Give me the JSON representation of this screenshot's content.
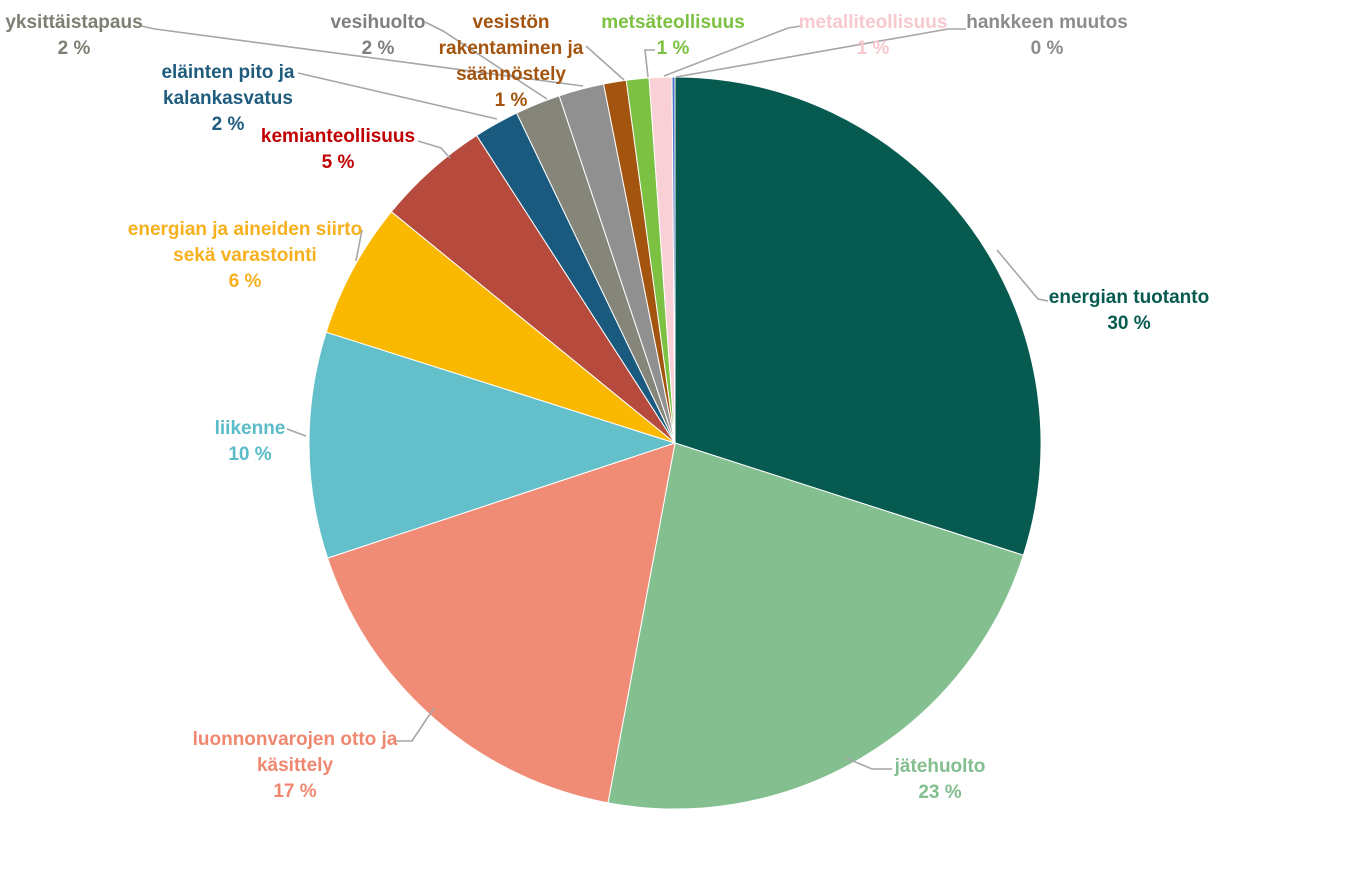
{
  "chart_data": {
    "type": "pie",
    "title": "",
    "unit": "%",
    "background": "#FFFFFF",
    "leader_line_color": "#A6A6A6",
    "slice_border_color": "#FFFFFF",
    "start_position": "12-oclock",
    "direction": "clockwise",
    "slices": [
      {
        "label": "energian tuotanto",
        "label_lines": [
          "energian tuotanto"
        ],
        "value": 30,
        "display": "30 %",
        "color": "#075A50",
        "label_color": "#075A50"
      },
      {
        "label": "jätehuolto",
        "label_lines": [
          "jätehuolto"
        ],
        "value": 23,
        "display": "23 %",
        "color": "#84BF90",
        "label_color": "#82BE8E"
      },
      {
        "label": "luonnonvarojen otto ja käsittely",
        "label_lines": [
          "luonnonvarojen otto ja",
          "käsittely"
        ],
        "value": 17,
        "display": "17 %",
        "color": "#F08C76",
        "label_color": "#F08870"
      },
      {
        "label": "liikenne",
        "label_lines": [
          "liikenne"
        ],
        "value": 10,
        "display": "10 %",
        "color": "#63BFC9",
        "label_color": "#5BBCC9"
      },
      {
        "label": "energian ja aineiden siirto sekä varastointi",
        "label_lines": [
          "energian ja aineiden siirto",
          "sekä varastointi"
        ],
        "value": 6,
        "display": "6 %",
        "color": "#FBB800",
        "label_color": "#F8B11E"
      },
      {
        "label": "kemianteollisuus",
        "label_lines": [
          "kemianteollisuus"
        ],
        "value": 5,
        "display": "5 %",
        "color": "#B54A3D",
        "label_color": "#C00000"
      },
      {
        "label": "eläinten pito ja kalankasvatus",
        "label_lines": [
          "eläinten pito ja",
          "kalankasvatus"
        ],
        "value": 2,
        "display": "2 %",
        "color": "#1A5A7E",
        "label_color": "#1F5C7E"
      },
      {
        "label": "vesihuolto",
        "label_lines": [
          "vesihuolto"
        ],
        "value": 2,
        "display": "2 %",
        "color": "#85857A",
        "label_color": "#7F7F7F"
      },
      {
        "label": "yksittäistapaus",
        "label_lines": [
          "yksittäistapaus"
        ],
        "value": 2,
        "display": "2 %",
        "color": "#909090",
        "label_color": "#7F7E72"
      },
      {
        "label": "vesistön rakentaminen ja säännöstely",
        "label_lines": [
          "vesistön",
          "rakentaminen ja",
          "säännöstely"
        ],
        "value": 1,
        "display": "1 %",
        "color": "#A3540E",
        "label_color": "#A3540E"
      },
      {
        "label": "metsäteollisuus",
        "label_lines": [
          "metsäteollisuus"
        ],
        "value": 1,
        "display": "1 %",
        "color": "#7CC142",
        "label_color": "#7CC142"
      },
      {
        "label": "metalliteollisuus",
        "label_lines": [
          "metalliteollisuus"
        ],
        "value": 1,
        "display": "1 %",
        "color": "#F8D0D6",
        "label_color": "#F7C8CD"
      },
      {
        "label": "hankkeen muutos",
        "label_lines": [
          "hankkeen muutos"
        ],
        "value": 0,
        "display": "0 %",
        "color": "#4472C4",
        "label_color": "#8C8C8C"
      }
    ]
  }
}
